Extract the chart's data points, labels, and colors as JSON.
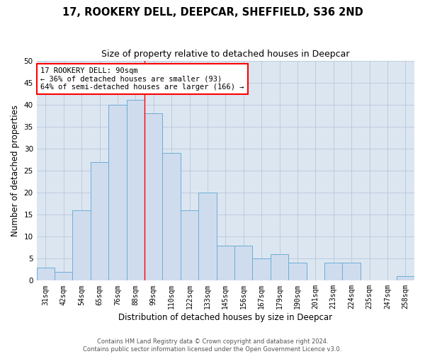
{
  "title": "17, ROOKERY DELL, DEEPCAR, SHEFFIELD, S36 2ND",
  "subtitle": "Size of property relative to detached houses in Deepcar",
  "xlabel": "Distribution of detached houses by size in Deepcar",
  "ylabel": "Number of detached properties",
  "bar_labels": [
    "31sqm",
    "42sqm",
    "54sqm",
    "65sqm",
    "76sqm",
    "88sqm",
    "99sqm",
    "110sqm",
    "122sqm",
    "133sqm",
    "145sqm",
    "156sqm",
    "167sqm",
    "179sqm",
    "190sqm",
    "201sqm",
    "213sqm",
    "224sqm",
    "235sqm",
    "247sqm",
    "258sqm"
  ],
  "bar_values": [
    3,
    2,
    16,
    27,
    40,
    41,
    38,
    29,
    16,
    20,
    8,
    8,
    5,
    6,
    4,
    0,
    4,
    4,
    0,
    0,
    1
  ],
  "bar_color": "#cfdcee",
  "bar_edge_color": "#6baed6",
  "reference_line_x": 5.5,
  "annotation_text": "17 ROOKERY DELL: 90sqm\n← 36% of detached houses are smaller (93)\n64% of semi-detached houses are larger (166) →",
  "annotation_box_color": "white",
  "annotation_box_edge_color": "red",
  "ylim": [
    0,
    50
  ],
  "yticks": [
    0,
    5,
    10,
    15,
    20,
    25,
    30,
    35,
    40,
    45,
    50
  ],
  "grid_color": "#b8c8dc",
  "background_color": "#dce6f1",
  "footer_text": "Contains HM Land Registry data © Crown copyright and database right 2024.\nContains public sector information licensed under the Open Government Licence v3.0.",
  "title_fontsize": 10.5,
  "subtitle_fontsize": 9,
  "xlabel_fontsize": 8.5,
  "tick_fontsize": 7,
  "ylabel_fontsize": 8.5,
  "annotation_fontsize": 7.5
}
